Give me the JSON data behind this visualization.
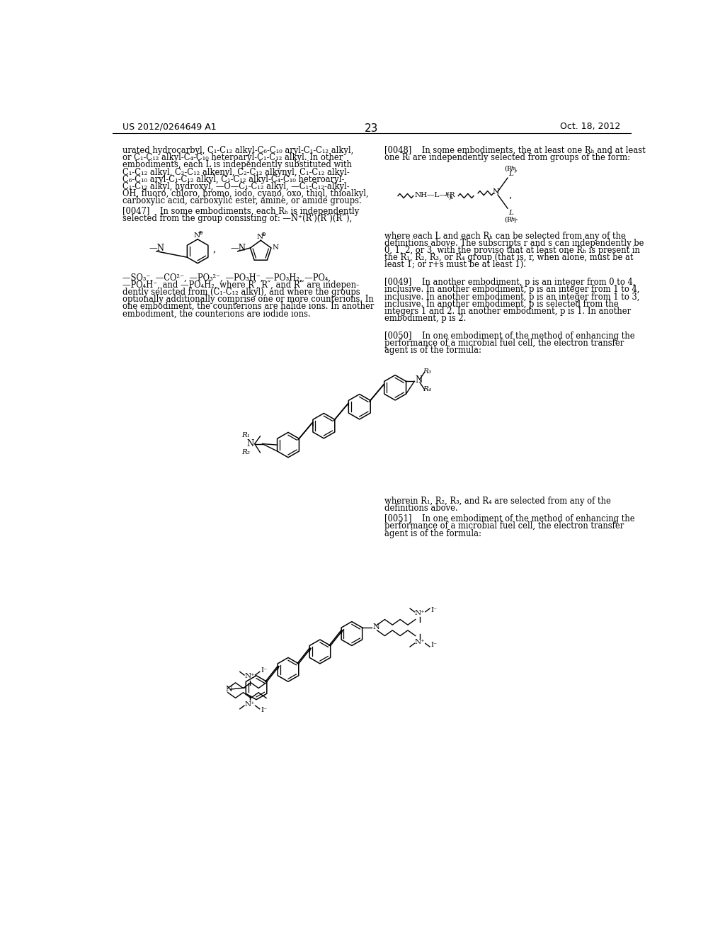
{
  "page_number": "23",
  "patent_number": "US 2012/0264649 A1",
  "patent_date": "Oct. 18, 2012",
  "background_color": "#ffffff",
  "left_paragraphs": [
    "urated hydrocarbyl, C₁-C₁₂ alkyl-C₆-C₁₀ aryl-C₁-C₁₂ alkyl,",
    "or C₁-C₁₂ alkyl-C₄-C₁₀ heteroaryl-C₁-C₁₂ alkyl. In other",
    "embodiments, each L is independently substituted with",
    "C₁-C₁₂ alkyl, C₂-C₁₂ alkenyl, C₂-C₁₂ alkynyl, C₁-C₁₂ alkyl-",
    "C₆-C₁₀ aryl-C₁-C₁₂ alkyl, C₁-C₁₂ alkyl-C₄-C₁₀ heteroaryl-",
    "C₁-C₁₂ alkyl, hydroxyl, —O—C₁-C₁₂ alkyl, —C₁-C₁₂-alkyl-",
    "OH, fluoro, chloro, bromo, iodo, cyano, oxo, thiol, thioalkyl,",
    "carboxylic acid, carboxylic ester, amine, or amide groups."
  ],
  "para_0047_line1": "[0047]    In some embodiments, each R",
  "para_0047_line2": "selected from the group consisting of: —N⁺(R’)(R″)(R‴),",
  "chemicals_0047": "—SO₃⁻, —CO²⁻, —PO₃²⁻, —PO₃H⁻, —PO₃H₂, —PO₄,\n—PO₄H⁻, and —PO₄H₂, where R’, R″, and R‴ are indepen-\ndently selected from (C₁-C₁₂ alkyl), and where the groups\noptionally additionally comprise one or more counterions. In\none embodiment, the counterions are halide ions. In another\nembodiment, the counterions are iodide ions.",
  "right_para_0048": "[0048]    In some embodiments, the at least one Rₕ and at least\none Rₗ are independently selected from groups of the form:",
  "right_para_0048b": "where each L and each Rₕ can be selected from any of the\ndefinitions above. The subscripts r and s can independently be\n0, 1, 2, or 3, with the proviso that at least one Rₕ is present in\nthe R₁, R₂, R₃, or R₄ group (that is, r, when alone, must be at\nleast 1; or r+s must be at least 1).",
  "para_0049": "[0049]    In another embodiment, p is an integer from 0 to 4,\ninclusive. In another embodiment, p is an integer from 1 to 4,\ninclusive. In another embodiment, p is an integer from 1 to 3,\ninclusive. In another embodiment, p is selected from the\nintegers 1 and 2. In another embodiment, p is 1. In another\nembodiment, p is 2.",
  "para_0050": "[0050]    In one embodiment of the method of enhancing the\nperformance of a microbial fuel cell, the electron transfer\nagent is of the formula:",
  "para_wherein": "wherein R₁, R₂, R₃, and R₄ are selected from any of the\ndefinitions above.",
  "para_0051": "[0051]    In one embodiment of the method of enhancing the\nperformance of a microbial fuel cell, the electron transfer\nagent is of the formula:"
}
